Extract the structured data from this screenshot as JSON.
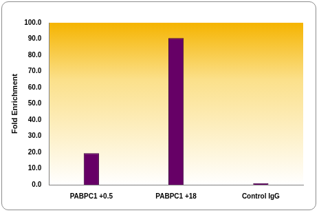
{
  "chart_data": {
    "type": "bar",
    "y_label": "Fold Enrichment",
    "categories": [
      "PABPC1 +0.5",
      "PABPC1 +18",
      "Control IgG"
    ],
    "values": [
      19.5,
      90.5,
      1.0
    ],
    "color": "#660066",
    "ylim": [
      0,
      100
    ],
    "yticks": [
      {
        "value": 0,
        "label": "0.0"
      },
      {
        "value": 10,
        "label": "10.0"
      },
      {
        "value": 20,
        "label": "20.0"
      },
      {
        "value": 30,
        "label": "30.0"
      },
      {
        "value": 40,
        "label": "40.0"
      },
      {
        "value": 50,
        "label": "50.0"
      },
      {
        "value": 60,
        "label": "60.0"
      },
      {
        "value": 70,
        "label": "70.0"
      },
      {
        "value": 80,
        "label": "80.0"
      },
      {
        "value": 90,
        "label": "90.0"
      },
      {
        "value": 100,
        "label": "100.0"
      }
    ],
    "grid": false
  }
}
